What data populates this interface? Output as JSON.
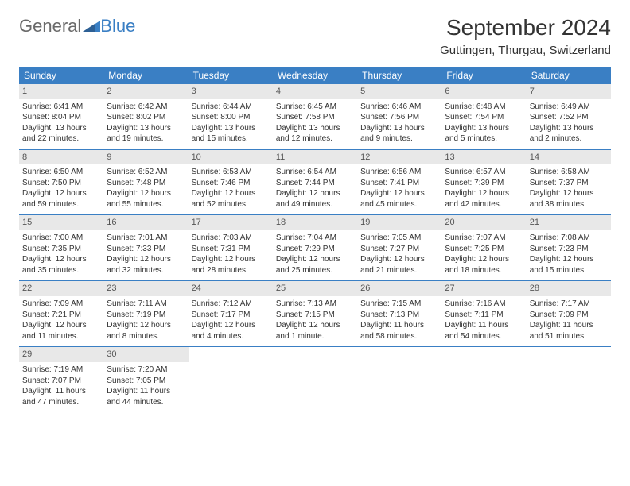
{
  "brand": {
    "part1": "General",
    "part2": "Blue"
  },
  "title": "September 2024",
  "location": "Guttingen, Thurgau, Switzerland",
  "colors": {
    "header_bg": "#3a7fc4",
    "header_text": "#ffffff",
    "daynum_bg": "#e8e8e8",
    "text": "#333333",
    "logo_gray": "#6a6a6a",
    "logo_blue": "#3a7fc4",
    "page_bg": "#ffffff"
  },
  "day_names": [
    "Sunday",
    "Monday",
    "Tuesday",
    "Wednesday",
    "Thursday",
    "Friday",
    "Saturday"
  ],
  "weeks": [
    [
      {
        "n": "1",
        "sr": "Sunrise: 6:41 AM",
        "ss": "Sunset: 8:04 PM",
        "d1": "Daylight: 13 hours",
        "d2": "and 22 minutes."
      },
      {
        "n": "2",
        "sr": "Sunrise: 6:42 AM",
        "ss": "Sunset: 8:02 PM",
        "d1": "Daylight: 13 hours",
        "d2": "and 19 minutes."
      },
      {
        "n": "3",
        "sr": "Sunrise: 6:44 AM",
        "ss": "Sunset: 8:00 PM",
        "d1": "Daylight: 13 hours",
        "d2": "and 15 minutes."
      },
      {
        "n": "4",
        "sr": "Sunrise: 6:45 AM",
        "ss": "Sunset: 7:58 PM",
        "d1": "Daylight: 13 hours",
        "d2": "and 12 minutes."
      },
      {
        "n": "5",
        "sr": "Sunrise: 6:46 AM",
        "ss": "Sunset: 7:56 PM",
        "d1": "Daylight: 13 hours",
        "d2": "and 9 minutes."
      },
      {
        "n": "6",
        "sr": "Sunrise: 6:48 AM",
        "ss": "Sunset: 7:54 PM",
        "d1": "Daylight: 13 hours",
        "d2": "and 5 minutes."
      },
      {
        "n": "7",
        "sr": "Sunrise: 6:49 AM",
        "ss": "Sunset: 7:52 PM",
        "d1": "Daylight: 13 hours",
        "d2": "and 2 minutes."
      }
    ],
    [
      {
        "n": "8",
        "sr": "Sunrise: 6:50 AM",
        "ss": "Sunset: 7:50 PM",
        "d1": "Daylight: 12 hours",
        "d2": "and 59 minutes."
      },
      {
        "n": "9",
        "sr": "Sunrise: 6:52 AM",
        "ss": "Sunset: 7:48 PM",
        "d1": "Daylight: 12 hours",
        "d2": "and 55 minutes."
      },
      {
        "n": "10",
        "sr": "Sunrise: 6:53 AM",
        "ss": "Sunset: 7:46 PM",
        "d1": "Daylight: 12 hours",
        "d2": "and 52 minutes."
      },
      {
        "n": "11",
        "sr": "Sunrise: 6:54 AM",
        "ss": "Sunset: 7:44 PM",
        "d1": "Daylight: 12 hours",
        "d2": "and 49 minutes."
      },
      {
        "n": "12",
        "sr": "Sunrise: 6:56 AM",
        "ss": "Sunset: 7:41 PM",
        "d1": "Daylight: 12 hours",
        "d2": "and 45 minutes."
      },
      {
        "n": "13",
        "sr": "Sunrise: 6:57 AM",
        "ss": "Sunset: 7:39 PM",
        "d1": "Daylight: 12 hours",
        "d2": "and 42 minutes."
      },
      {
        "n": "14",
        "sr": "Sunrise: 6:58 AM",
        "ss": "Sunset: 7:37 PM",
        "d1": "Daylight: 12 hours",
        "d2": "and 38 minutes."
      }
    ],
    [
      {
        "n": "15",
        "sr": "Sunrise: 7:00 AM",
        "ss": "Sunset: 7:35 PM",
        "d1": "Daylight: 12 hours",
        "d2": "and 35 minutes."
      },
      {
        "n": "16",
        "sr": "Sunrise: 7:01 AM",
        "ss": "Sunset: 7:33 PM",
        "d1": "Daylight: 12 hours",
        "d2": "and 32 minutes."
      },
      {
        "n": "17",
        "sr": "Sunrise: 7:03 AM",
        "ss": "Sunset: 7:31 PM",
        "d1": "Daylight: 12 hours",
        "d2": "and 28 minutes."
      },
      {
        "n": "18",
        "sr": "Sunrise: 7:04 AM",
        "ss": "Sunset: 7:29 PM",
        "d1": "Daylight: 12 hours",
        "d2": "and 25 minutes."
      },
      {
        "n": "19",
        "sr": "Sunrise: 7:05 AM",
        "ss": "Sunset: 7:27 PM",
        "d1": "Daylight: 12 hours",
        "d2": "and 21 minutes."
      },
      {
        "n": "20",
        "sr": "Sunrise: 7:07 AM",
        "ss": "Sunset: 7:25 PM",
        "d1": "Daylight: 12 hours",
        "d2": "and 18 minutes."
      },
      {
        "n": "21",
        "sr": "Sunrise: 7:08 AM",
        "ss": "Sunset: 7:23 PM",
        "d1": "Daylight: 12 hours",
        "d2": "and 15 minutes."
      }
    ],
    [
      {
        "n": "22",
        "sr": "Sunrise: 7:09 AM",
        "ss": "Sunset: 7:21 PM",
        "d1": "Daylight: 12 hours",
        "d2": "and 11 minutes."
      },
      {
        "n": "23",
        "sr": "Sunrise: 7:11 AM",
        "ss": "Sunset: 7:19 PM",
        "d1": "Daylight: 12 hours",
        "d2": "and 8 minutes."
      },
      {
        "n": "24",
        "sr": "Sunrise: 7:12 AM",
        "ss": "Sunset: 7:17 PM",
        "d1": "Daylight: 12 hours",
        "d2": "and 4 minutes."
      },
      {
        "n": "25",
        "sr": "Sunrise: 7:13 AM",
        "ss": "Sunset: 7:15 PM",
        "d1": "Daylight: 12 hours",
        "d2": "and 1 minute."
      },
      {
        "n": "26",
        "sr": "Sunrise: 7:15 AM",
        "ss": "Sunset: 7:13 PM",
        "d1": "Daylight: 11 hours",
        "d2": "and 58 minutes."
      },
      {
        "n": "27",
        "sr": "Sunrise: 7:16 AM",
        "ss": "Sunset: 7:11 PM",
        "d1": "Daylight: 11 hours",
        "d2": "and 54 minutes."
      },
      {
        "n": "28",
        "sr": "Sunrise: 7:17 AM",
        "ss": "Sunset: 7:09 PM",
        "d1": "Daylight: 11 hours",
        "d2": "and 51 minutes."
      }
    ],
    [
      {
        "n": "29",
        "sr": "Sunrise: 7:19 AM",
        "ss": "Sunset: 7:07 PM",
        "d1": "Daylight: 11 hours",
        "d2": "and 47 minutes."
      },
      {
        "n": "30",
        "sr": "Sunrise: 7:20 AM",
        "ss": "Sunset: 7:05 PM",
        "d1": "Daylight: 11 hours",
        "d2": "and 44 minutes."
      },
      {
        "empty": true
      },
      {
        "empty": true
      },
      {
        "empty": true
      },
      {
        "empty": true
      },
      {
        "empty": true
      }
    ]
  ]
}
